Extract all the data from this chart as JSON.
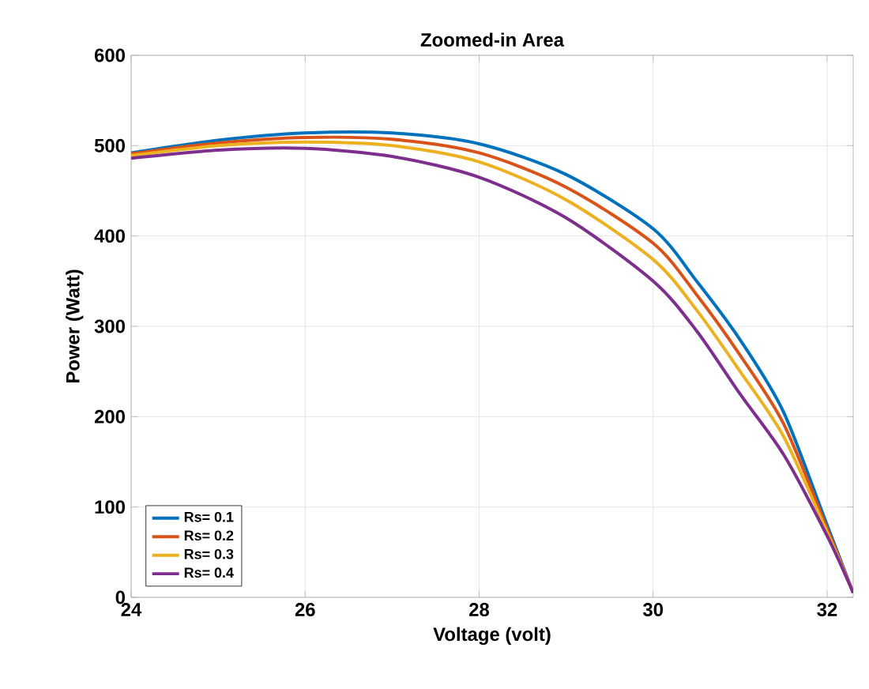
{
  "chart_data": {
    "type": "line",
    "title": "Zoomed-in Area",
    "xlabel": "Voltage (volt)",
    "ylabel": "Power (Watt)",
    "xlim": [
      24,
      32.3
    ],
    "ylim": [
      0,
      600
    ],
    "xticks": [
      24,
      26,
      28,
      30,
      32
    ],
    "yticks": [
      0,
      100,
      200,
      300,
      400,
      500,
      600
    ],
    "grid": true,
    "legend": "bottom left",
    "x": [
      24,
      25,
      26,
      27,
      28,
      29,
      30,
      30.5,
      31,
      31.5,
      32,
      32.3
    ],
    "series": [
      {
        "name": "Rs= 0.1",
        "color": "#0072bd",
        "values": [
          492,
          506,
          514,
          514,
          502,
          468,
          408,
          350,
          285,
          205,
          80,
          5
        ]
      },
      {
        "name": "Rs= 0.2",
        "color": "#d95319",
        "values": [
          491,
          503,
          509,
          507,
          492,
          454,
          392,
          335,
          268,
          192,
          76,
          5
        ]
      },
      {
        "name": "Rs= 0.3",
        "color": "#edb120",
        "values": [
          489,
          500,
          504,
          500,
          482,
          440,
          374,
          318,
          250,
          178,
          72,
          5
        ]
      },
      {
        "name": "Rs= 0.4",
        "color": "#7e2f8e",
        "values": [
          486,
          495,
          497,
          488,
          465,
          420,
          350,
          295,
          225,
          158,
          68,
          5
        ]
      }
    ]
  }
}
